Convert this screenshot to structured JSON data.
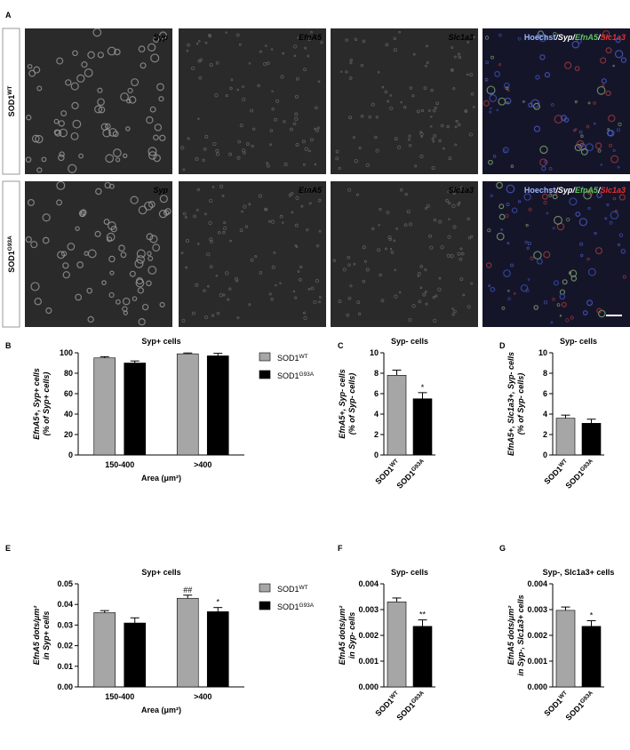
{
  "panel_a": {
    "label": "A",
    "rows": [
      {
        "name": "SOD1",
        "sup": "WT"
      },
      {
        "name": "SOD1",
        "sup": "G93A"
      }
    ],
    "channels": [
      "Syp",
      "EfnA5",
      "Slc1a3"
    ],
    "merge": [
      {
        "text": "Hoechst",
        "color": "#9ab8ff"
      },
      {
        "text": "/Syp/",
        "color": "#ffffff"
      },
      {
        "text": "EfnA5",
        "color": "#5ec45e"
      },
      {
        "text": "/",
        "color": "#ffffff"
      },
      {
        "text": "Slc1a3",
        "color": "#e53030"
      }
    ]
  },
  "chart_data": [
    {
      "panel": "B",
      "type": "bar",
      "title": "Syp+ cells",
      "ylabel": [
        "EfnA5+, Syp+ cells",
        "(% of Syp+ cells)"
      ],
      "xlabel": "Area (μm²)",
      "categories": [
        "150-400",
        ">400"
      ],
      "series": [
        {
          "name": "SOD1",
          "name_sup": "WT",
          "color": "#a6a6a6",
          "values": [
            95,
            99
          ],
          "errors": [
            1.2,
            0.8
          ]
        },
        {
          "name": "SOD1",
          "name_sup": "G93A",
          "color": "#000000",
          "values": [
            90,
            97
          ],
          "errors": [
            2,
            2.5
          ]
        }
      ],
      "ylim": [
        0,
        100
      ],
      "yticks": [
        0,
        20,
        40,
        60,
        80,
        100
      ],
      "legend": "right"
    },
    {
      "panel": "C",
      "type": "bar",
      "title": "Syp- cells",
      "ylabel": [
        "EfnA5+, Syp- cells",
        "(% of Syp- cells)"
      ],
      "categories": [
        "SOD1",
        "SOD1"
      ],
      "category_sups": [
        "WT",
        "G93A"
      ],
      "values": [
        7.8,
        5.5
      ],
      "errors": [
        0.5,
        0.6
      ],
      "colors": [
        "#a6a6a6",
        "#000000"
      ],
      "annotations": [
        null,
        "*"
      ],
      "ylim": [
        0,
        10
      ],
      "yticks": [
        0,
        2,
        4,
        6,
        8,
        10
      ]
    },
    {
      "panel": "D",
      "type": "bar",
      "title": "Syp- cells",
      "ylabel": [
        "EfnA5+, Slc1a3+, Syp- cells",
        "(% of Syp- cells)"
      ],
      "categories": [
        "SOD1",
        "SOD1"
      ],
      "category_sups": [
        "WT",
        "G93A"
      ],
      "values": [
        3.6,
        3.1
      ],
      "errors": [
        0.3,
        0.4
      ],
      "colors": [
        "#a6a6a6",
        "#000000"
      ],
      "ylim": [
        0,
        10
      ],
      "yticks": [
        0,
        2,
        4,
        6,
        8,
        10
      ]
    },
    {
      "panel": "E",
      "type": "bar",
      "title": "Syp+ cells",
      "ylabel": [
        "EfnA5 dots/μm²",
        "in Syp+ cells"
      ],
      "xlabel": "Area (μm²)",
      "categories": [
        "150-400",
        ">400"
      ],
      "series": [
        {
          "name": "SOD1",
          "name_sup": "WT",
          "color": "#a6a6a6",
          "values": [
            0.036,
            0.043
          ],
          "errors": [
            0.001,
            0.0015
          ],
          "annotations": [
            null,
            "##"
          ]
        },
        {
          "name": "SOD1",
          "name_sup": "G93A",
          "color": "#000000",
          "values": [
            0.031,
            0.0365
          ],
          "errors": [
            0.0025,
            0.002
          ],
          "annotations": [
            null,
            "*"
          ]
        }
      ],
      "ylim": [
        0,
        0.05
      ],
      "yticks": [
        {
          "value": 0,
          "label": "0.00"
        },
        0.01,
        0.02,
        0.03,
        0.04,
        0.05
      ],
      "legend": "right"
    },
    {
      "panel": "F",
      "type": "bar",
      "title": "Syp- cells",
      "ylabel": [
        "EfnA5 dots/μm²",
        "in Syp- cells"
      ],
      "categories": [
        "SOD1",
        "SOD1"
      ],
      "category_sups": [
        "WT",
        "G93A"
      ],
      "values": [
        0.0033,
        0.00235
      ],
      "errors": [
        0.00015,
        0.00025
      ],
      "colors": [
        "#a6a6a6",
        "#000000"
      ],
      "annotations": [
        null,
        "**"
      ],
      "ylim": [
        0,
        0.004
      ],
      "yticks": [
        {
          "value": 0,
          "label": "0.000"
        },
        0.001,
        0.002,
        0.003,
        0.004
      ]
    },
    {
      "panel": "G",
      "type": "bar",
      "title": "Syp-, Slc1a3+ cells",
      "ylabel": [
        "EfnA5 dots/μm²",
        "in Syp-, Slc1a3+ cells"
      ],
      "categories": [
        "SOD1",
        "SOD1"
      ],
      "category_sups": [
        "WT",
        "G93A"
      ],
      "values": [
        0.00297,
        0.00235
      ],
      "errors": [
        0.00013,
        0.00022
      ],
      "colors": [
        "#a6a6a6",
        "#000000"
      ],
      "annotations": [
        null,
        "*"
      ],
      "ylim": [
        0,
        0.004
      ],
      "yticks": [
        {
          "value": 0,
          "label": "0.000"
        },
        0.001,
        0.002,
        0.003,
        0.004
      ]
    }
  ]
}
